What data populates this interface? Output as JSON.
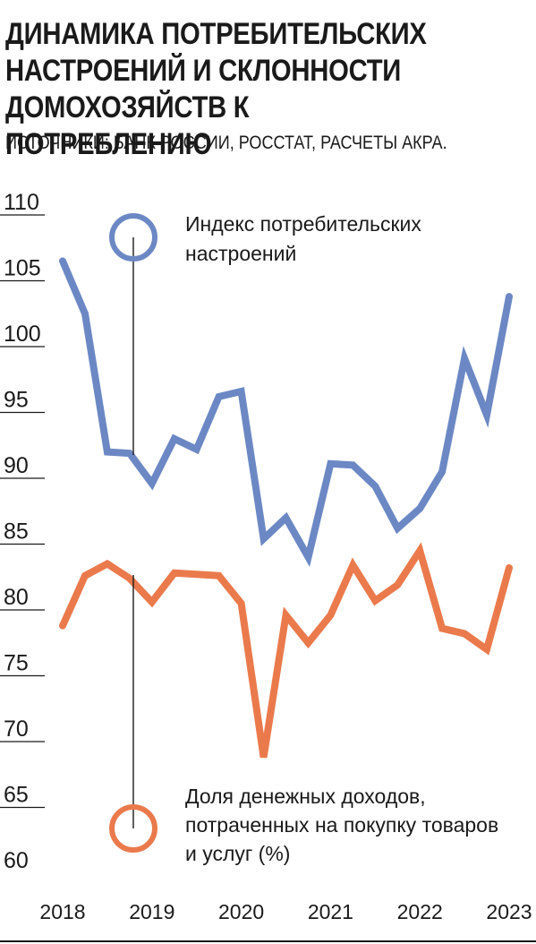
{
  "chart_data": {
    "type": "line",
    "title": "ДИНАМИКА ПОТРЕБИТЕЛЬСКИХ НАСТРОЕНИЙ И СКЛОННОСТИ ДОМОХОЗЯЙСТВ К ПОТРЕБЛЕНИЮ",
    "subtitle": "ИСТОЧНИКИ: БАНК РОССИИ, РОССТАТ, РАСЧЕТЫ АКРА.",
    "yticks": [
      "110",
      "105",
      "100",
      "95",
      "90",
      "85",
      "80",
      "75",
      "70",
      "65",
      "60"
    ],
    "xticks": [
      "2018",
      "2019",
      "2020",
      "2021",
      "2022",
      "2023"
    ],
    "ylim": [
      60,
      110
    ],
    "xlim": [
      2017.9,
      2023.1
    ],
    "grid": false,
    "series": [
      {
        "name": "Индекс потребительских настроений",
        "label_lines": [
          "Индекс потребительских",
          "настроений"
        ],
        "color": "#6c88c4",
        "x": [
          2018.0,
          2018.25,
          2018.5,
          2018.75,
          2019.0,
          2019.25,
          2019.5,
          2019.75,
          2020.0,
          2020.25,
          2020.5,
          2020.75,
          2021.0,
          2021.25,
          2021.5,
          2021.75,
          2022.0,
          2022.25,
          2022.5,
          2022.75,
          2023.0
        ],
        "values": [
          106.5,
          102.5,
          92.0,
          91.9,
          89.6,
          93.0,
          92.2,
          96.2,
          96.6,
          85.4,
          87.0,
          84.0,
          91.1,
          91.0,
          89.4,
          86.2,
          87.7,
          90.5,
          99.1,
          94.8,
          103.8
        ]
      },
      {
        "name": "Доля денежных доходов, потраченных на покупку товаров и услуг (%)",
        "label_lines": [
          "Доля денежных доходов,",
          "потраченных на покупку товаров",
          "и услуг (%)"
        ],
        "color": "#ea7a4c",
        "x": [
          2018.0,
          2018.25,
          2018.5,
          2018.75,
          2019.0,
          2019.25,
          2019.5,
          2019.75,
          2020.0,
          2020.25,
          2020.5,
          2020.75,
          2021.0,
          2021.25,
          2021.5,
          2021.75,
          2022.0,
          2022.25,
          2022.5,
          2022.75,
          2023.0
        ],
        "values": [
          78.8,
          82.6,
          83.5,
          82.4,
          80.6,
          82.8,
          82.7,
          82.6,
          80.5,
          68.8,
          79.6,
          77.5,
          79.6,
          83.4,
          80.7,
          81.9,
          84.5,
          78.6,
          78.2,
          77.0,
          83.2
        ]
      }
    ]
  }
}
